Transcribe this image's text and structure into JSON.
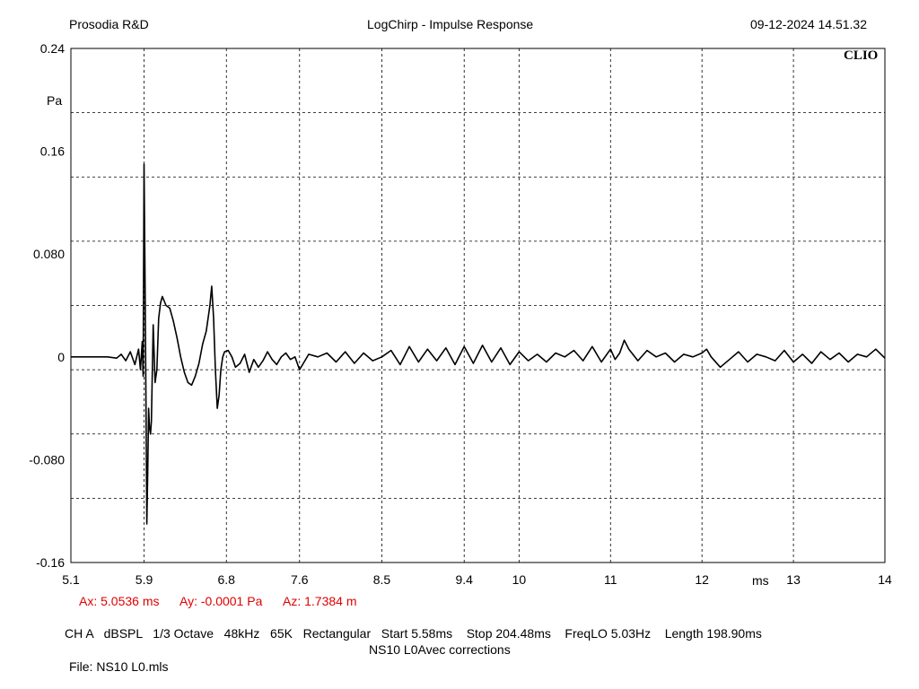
{
  "header": {
    "left": "Prosodia R&D",
    "center": "LogChirp - Impulse Response",
    "right": "09-12-2024 14.51.32"
  },
  "logo": "CLIO",
  "readout": {
    "ax": "Ax: 5.0536 ms",
    "ay": "Ay: -0.0001 Pa",
    "az": "Az: 1.7384 m"
  },
  "settings": {
    "line1": "CH A   dBSPL   1/3 Octave   48kHz   65K   Rectangular   Start 5.58ms    Stop 204.48ms    FreqLO 5.03Hz    Length 198.90ms",
    "line2": "NS10 L0Avec corrections"
  },
  "file": "File: NS10 L0.mls",
  "colors": {
    "trace": "#000000",
    "grid": "#000000",
    "readout": "#e00000"
  },
  "chart_data": {
    "type": "line",
    "title": "LogChirp - Impulse Response",
    "xlabel": "ms",
    "ylabel": "Pa",
    "xlim": [
      5.1,
      14
    ],
    "ylim": [
      -0.16,
      0.24
    ],
    "grid": true,
    "x_ticks": [
      "5.1",
      "5.9",
      "6.8",
      "7.6",
      "8.5",
      "9.4",
      "10",
      "11",
      "12",
      "13",
      "14"
    ],
    "y_ticks": [
      "0.24",
      "0.16",
      "0.080",
      "0",
      "-0.080",
      "-0.16"
    ],
    "series": [
      {
        "x": [
          5.1,
          5.4,
          5.5,
          5.6,
          5.65,
          5.7,
          5.75,
          5.8,
          5.84,
          5.86,
          5.88,
          5.89,
          5.9,
          5.91,
          5.92,
          5.93,
          5.94,
          5.95,
          5.96,
          5.97,
          5.98,
          6.0,
          6.02,
          6.04,
          6.06,
          6.08,
          6.1,
          6.14,
          6.18,
          6.22,
          6.26,
          6.3,
          6.34,
          6.38,
          6.42,
          6.46,
          6.5,
          6.54,
          6.58,
          6.62,
          6.64,
          6.66,
          6.68,
          6.7,
          6.72,
          6.74,
          6.76,
          6.78,
          6.82,
          6.86,
          6.9,
          6.95,
          7.0,
          7.05,
          7.1,
          7.15,
          7.2,
          7.25,
          7.3,
          7.35,
          7.4,
          7.45,
          7.5,
          7.55,
          7.6,
          7.7,
          7.8,
          7.9,
          8.0,
          8.1,
          8.2,
          8.3,
          8.4,
          8.5,
          8.6,
          8.7,
          8.8,
          8.9,
          9.0,
          9.1,
          9.2,
          9.3,
          9.4,
          9.5,
          9.6,
          9.7,
          9.8,
          9.9,
          10.0,
          10.1,
          10.2,
          10.3,
          10.4,
          10.5,
          10.6,
          10.7,
          10.8,
          10.9,
          11.0,
          11.05,
          11.1,
          11.15,
          11.2,
          11.3,
          11.4,
          11.5,
          11.6,
          11.7,
          11.8,
          11.9,
          12.0,
          12.05,
          12.1,
          12.2,
          12.3,
          12.4,
          12.5,
          12.6,
          12.7,
          12.8,
          12.9,
          13.0,
          13.1,
          13.2,
          13.3,
          13.4,
          13.5,
          13.6,
          13.7,
          13.8,
          13.9,
          14.0
        ],
        "values": [
          0.0,
          0.0,
          0.0,
          -0.001,
          0.002,
          -0.003,
          0.004,
          -0.006,
          0.006,
          -0.01,
          0.012,
          -0.015,
          0.15,
          0.07,
          -0.03,
          -0.13,
          -0.09,
          -0.04,
          -0.055,
          -0.06,
          -0.05,
          0.025,
          -0.02,
          -0.01,
          0.03,
          0.042,
          0.047,
          0.04,
          0.038,
          0.028,
          0.015,
          0.0,
          -0.012,
          -0.02,
          -0.022,
          -0.015,
          -0.005,
          0.01,
          0.02,
          0.04,
          0.055,
          0.03,
          -0.01,
          -0.04,
          -0.03,
          -0.01,
          0.0,
          0.004,
          0.005,
          0.0,
          -0.008,
          -0.005,
          0.002,
          -0.012,
          -0.002,
          -0.008,
          -0.003,
          0.004,
          -0.002,
          -0.006,
          0.0,
          0.003,
          -0.002,
          0.0,
          -0.01,
          0.002,
          0.0,
          0.003,
          -0.004,
          0.004,
          -0.005,
          0.003,
          -0.003,
          0.0,
          0.005,
          -0.006,
          0.008,
          -0.004,
          0.006,
          -0.003,
          0.007,
          -0.006,
          0.008,
          -0.005,
          0.009,
          -0.004,
          0.007,
          -0.006,
          0.004,
          -0.003,
          0.002,
          -0.004,
          0.003,
          0.0,
          0.005,
          -0.003,
          0.008,
          -0.004,
          0.006,
          -0.002,
          0.003,
          0.013,
          0.006,
          -0.003,
          0.005,
          0.0,
          0.003,
          -0.004,
          0.002,
          0.0,
          0.003,
          0.006,
          0.0,
          -0.008,
          -0.002,
          0.004,
          -0.004,
          0.002,
          0.0,
          -0.003,
          0.005,
          -0.004,
          0.002,
          -0.005,
          0.004,
          -0.002,
          0.003,
          -0.004,
          0.002,
          0.0,
          0.006,
          -0.001
        ]
      }
    ]
  }
}
